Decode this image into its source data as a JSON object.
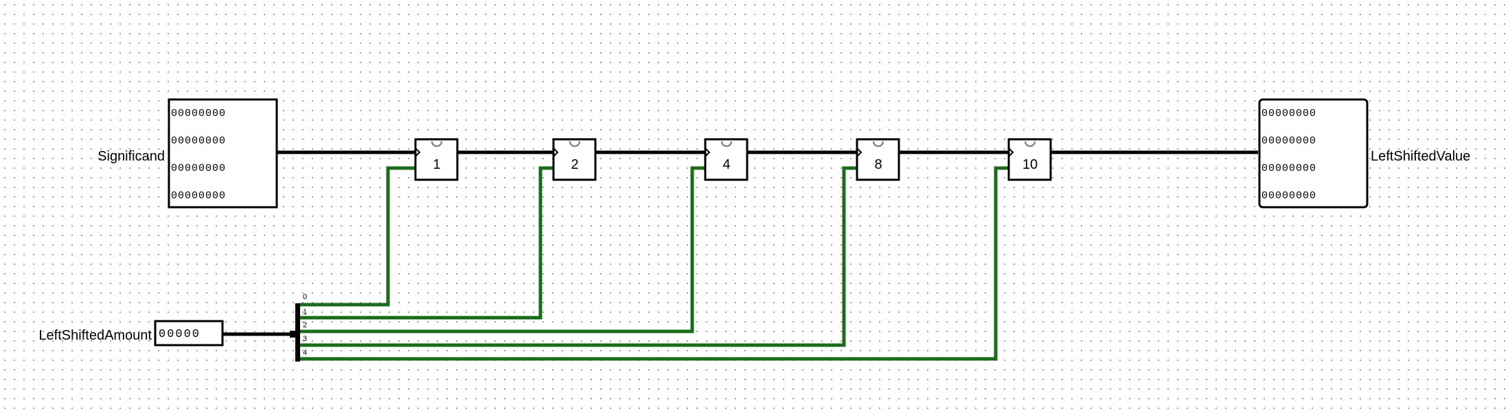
{
  "inputs": {
    "significand": {
      "label": "Significand",
      "bits": [
        "00000000",
        "00000000",
        "00000000",
        "00000000"
      ]
    },
    "shift_amount": {
      "label": "LeftShiftedAmount",
      "bits": "00000"
    }
  },
  "output": {
    "label": "LeftShiftedValue",
    "bits": [
      "00000000",
      "00000000",
      "00000000",
      "00000000"
    ]
  },
  "shifters": [
    {
      "label": "1"
    },
    {
      "label": "2"
    },
    {
      "label": "4"
    },
    {
      "label": "8"
    },
    {
      "label": "10"
    }
  ],
  "splitter": {
    "labels": [
      "0",
      "1",
      "2",
      "3",
      "4"
    ]
  },
  "colors": {
    "bus_wire": "#000000",
    "select_wire": "#1a6b1a"
  }
}
